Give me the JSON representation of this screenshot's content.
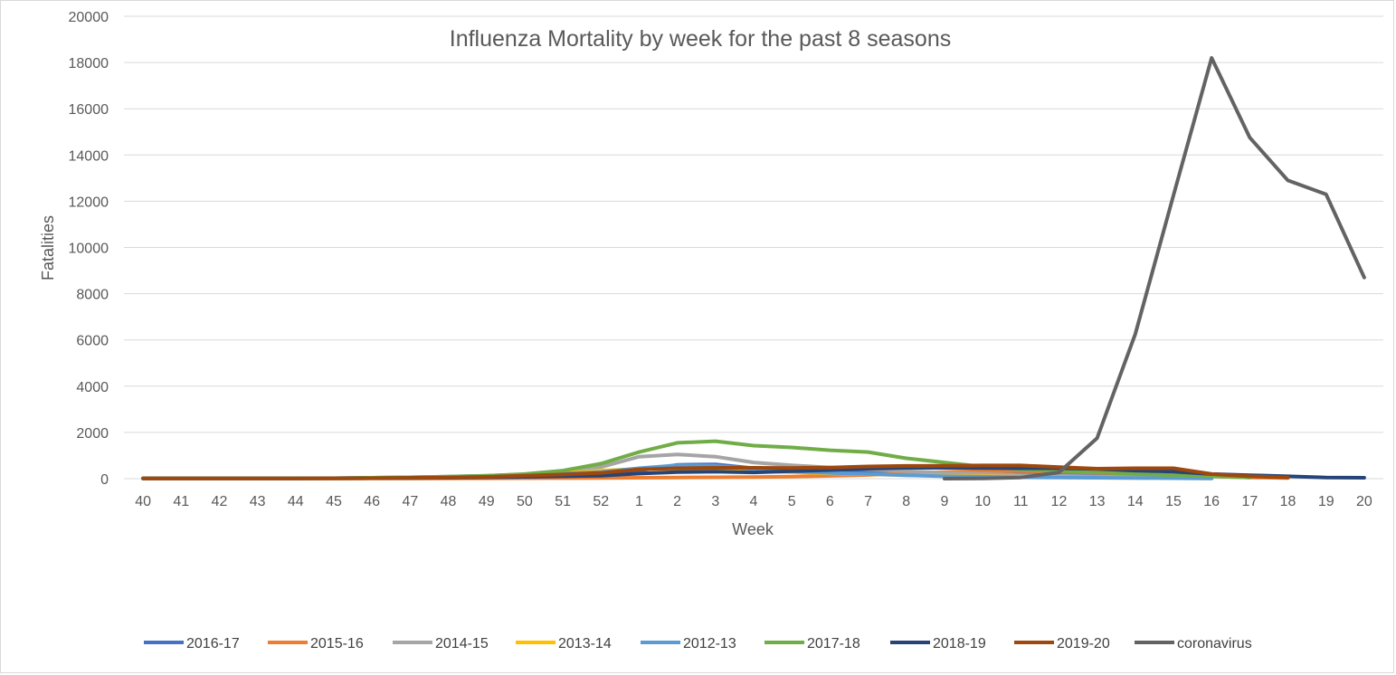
{
  "chart_data": {
    "type": "line",
    "title": "Influenza Mortality by week for the past 8 seasons",
    "xlabel": "Week",
    "ylabel": "Fatalities",
    "ylim": [
      0,
      20000
    ],
    "yticks": [
      "0",
      "2000",
      "4000",
      "6000",
      "8000",
      "10000",
      "12000",
      "14000",
      "16000",
      "18000",
      "20000"
    ],
    "categories": [
      "40",
      "41",
      "42",
      "43",
      "44",
      "45",
      "46",
      "47",
      "48",
      "49",
      "50",
      "51",
      "52",
      "1",
      "2",
      "3",
      "4",
      "5",
      "6",
      "7",
      "8",
      "9",
      "10",
      "11",
      "12",
      "13",
      "14",
      "15",
      "16",
      "17",
      "18",
      "19",
      "20"
    ],
    "grid": true,
    "legend_position": "bottom",
    "series": [
      {
        "name": "2016-17",
        "color": "#4472c4",
        "values": [
          10,
          10,
          10,
          10,
          10,
          15,
          20,
          30,
          40,
          60,
          80,
          120,
          180,
          350,
          600,
          620,
          450,
          350,
          300,
          280,
          250,
          250,
          230,
          200,
          180,
          150,
          120,
          100,
          60,
          null,
          null,
          null,
          null
        ]
      },
      {
        "name": "2015-16",
        "color": "#ed7d31",
        "values": [
          5,
          5,
          5,
          5,
          5,
          5,
          10,
          10,
          10,
          15,
          20,
          25,
          30,
          40,
          50,
          60,
          70,
          90,
          120,
          160,
          220,
          280,
          320,
          330,
          300,
          260,
          200,
          150,
          100,
          50,
          30,
          null,
          null
        ]
      },
      {
        "name": "2014-15",
        "color": "#a5a5a5",
        "values": [
          10,
          10,
          10,
          10,
          15,
          20,
          40,
          60,
          80,
          120,
          180,
          300,
          500,
          950,
          1050,
          950,
          700,
          580,
          480,
          400,
          320,
          250,
          200,
          150,
          120,
          90,
          60,
          40,
          20,
          null,
          null,
          null,
          null
        ]
      },
      {
        "name": "2013-14",
        "color": "#ffc000",
        "values": [
          10,
          10,
          10,
          10,
          10,
          15,
          20,
          40,
          60,
          100,
          150,
          250,
          350,
          420,
          420,
          380,
          330,
          280,
          230,
          190,
          150,
          120,
          100,
          80,
          60,
          40,
          30,
          20,
          10,
          null,
          null,
          null,
          null
        ]
      },
      {
        "name": "2012-13",
        "color": "#5b9bd5",
        "values": [
          10,
          10,
          10,
          10,
          15,
          20,
          40,
          60,
          90,
          130,
          180,
          220,
          280,
          450,
          580,
          550,
          420,
          320,
          250,
          200,
          150,
          100,
          80,
          60,
          50,
          40,
          30,
          20,
          10,
          null,
          null,
          null,
          null
        ]
      },
      {
        "name": "2017-18",
        "color": "#70ad47",
        "values": [
          10,
          10,
          10,
          10,
          15,
          20,
          40,
          60,
          90,
          120,
          200,
          350,
          650,
          1150,
          1550,
          1620,
          1430,
          1350,
          1230,
          1150,
          880,
          700,
          520,
          400,
          330,
          280,
          200,
          150,
          100,
          50,
          null,
          null,
          null
        ]
      },
      {
        "name": "2018-19",
        "color": "#264478",
        "values": [
          10,
          10,
          10,
          10,
          10,
          15,
          20,
          30,
          40,
          60,
          80,
          100,
          130,
          220,
          280,
          300,
          270,
          320,
          370,
          430,
          470,
          470,
          460,
          450,
          450,
          420,
          350,
          300,
          200,
          150,
          100,
          50,
          40
        ]
      },
      {
        "name": "2019-20",
        "color": "#9e480e",
        "values": [
          10,
          10,
          10,
          10,
          10,
          15,
          20,
          30,
          50,
          80,
          130,
          180,
          250,
          400,
          450,
          470,
          470,
          460,
          480,
          530,
          550,
          560,
          570,
          570,
          500,
          430,
          450,
          450,
          200,
          100,
          50,
          null,
          null
        ]
      },
      {
        "name": "coronavirus",
        "color": "#636363",
        "values": [
          null,
          null,
          null,
          null,
          null,
          null,
          null,
          null,
          null,
          null,
          null,
          null,
          null,
          null,
          null,
          null,
          null,
          null,
          null,
          null,
          null,
          0,
          10,
          50,
          270,
          1750,
          6250,
          12250,
          18200,
          14750,
          12900,
          12300,
          8700
        ]
      }
    ]
  }
}
